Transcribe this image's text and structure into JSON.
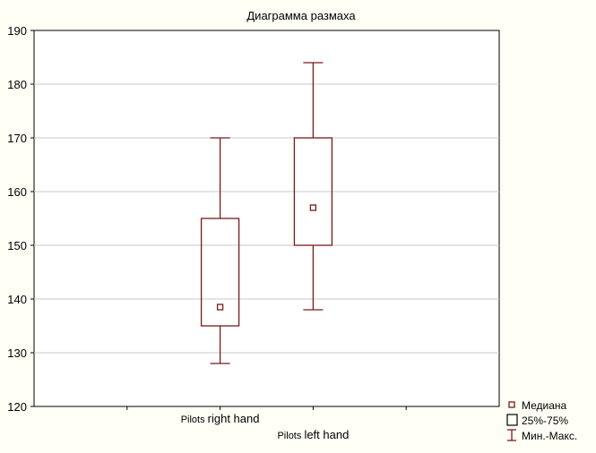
{
  "chart_data": {
    "type": "boxplot",
    "title": "Диаграмма размаха",
    "xlabel": "",
    "ylabel": "",
    "ylim": [
      120,
      190
    ],
    "yticks": [
      120,
      130,
      140,
      150,
      160,
      170,
      180,
      190
    ],
    "grid": true,
    "categories": [
      "Pilots right hand",
      "Pilots left hand"
    ],
    "category_label_parts": [
      {
        "prefix": "Pilots",
        "suffix": "right hand"
      },
      {
        "prefix": "Pilots",
        "suffix": "left hand"
      }
    ],
    "boxes": [
      {
        "category": "Pilots right hand",
        "min": 128,
        "q1": 135,
        "median": 138.5,
        "q3": 155,
        "max": 170
      },
      {
        "category": "Pilots left hand",
        "min": 138,
        "q1": 150,
        "median": 157,
        "q3": 170,
        "max": 184
      }
    ],
    "legend": {
      "placement": "bottom-right",
      "entries": [
        {
          "symbol": "median-marker",
          "label": "Медиана"
        },
        {
          "symbol": "box",
          "label": "25%-75%"
        },
        {
          "symbol": "whisker",
          "label": "Мин.-Макс."
        }
      ]
    },
    "colors": {
      "box_stroke": "#7a1a1a",
      "grid": "#c8c8c8",
      "plot_background": "#ffffff",
      "figure_background": "#fffff6"
    }
  }
}
